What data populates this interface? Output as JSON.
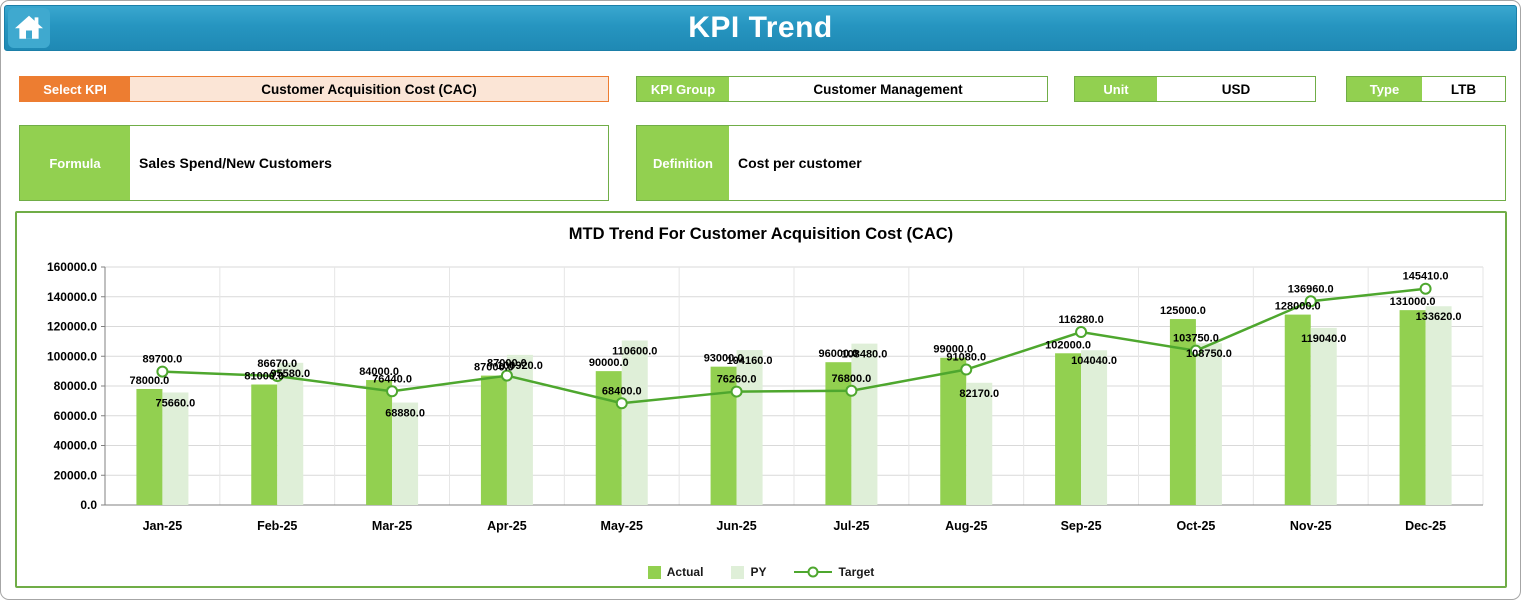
{
  "header": {
    "title": "KPI Trend"
  },
  "controls": {
    "select_kpi": {
      "label": "Select KPI",
      "value": "Customer Acquisition Cost (CAC)"
    },
    "kpi_group": {
      "label": "KPI Group",
      "value": "Customer Management"
    },
    "unit": {
      "label": "Unit",
      "value": "USD"
    },
    "type": {
      "label": "Type",
      "value": "LTB"
    },
    "formula": {
      "label": "Formula",
      "value": "Sales Spend/New Customers"
    },
    "definition": {
      "label": "Definition",
      "value": "Cost per customer"
    }
  },
  "chart_data": {
    "type": "bar",
    "title": "MTD Trend For Customer Acquisition Cost (CAC)",
    "categories": [
      "Jan-25",
      "Feb-25",
      "Mar-25",
      "Apr-25",
      "May-25",
      "Jun-25",
      "Jul-25",
      "Aug-25",
      "Sep-25",
      "Oct-25",
      "Nov-25",
      "Dec-25"
    ],
    "series": [
      {
        "name": "Actual",
        "type": "bar",
        "color": "#92D050",
        "values": [
          78000.0,
          81000.0,
          84000.0,
          87000.0,
          90000.0,
          93000.0,
          96000.0,
          99000.0,
          102000.0,
          125000.0,
          128000.0,
          131000.0
        ]
      },
      {
        "name": "PY",
        "type": "bar",
        "color": "#DFEFD8",
        "values": [
          75660.0,
          95580.0,
          68880.0,
          100920.0,
          110600.0,
          104160.0,
          108480.0,
          82170.0,
          104040.0,
          108750.0,
          119040.0,
          133620.0
        ]
      },
      {
        "name": "Target",
        "type": "line",
        "color": "#4EA72E",
        "values": [
          89700.0,
          86670.0,
          76440.0,
          87000.0,
          68400.0,
          76260.0,
          76800.0,
          91080.0,
          116280.0,
          103750.0,
          136960.0,
          145410.0
        ]
      }
    ],
    "ylim": [
      0,
      160000
    ],
    "ytick_step": 20000,
    "value_format_decimals": 1,
    "grid": true,
    "legend_position": "bottom"
  },
  "colors": {
    "header_teal": "#2695C0",
    "accent_orange": "#ED7D31",
    "orange_fill": "#FBE5D6",
    "accent_green": "#92D050",
    "py_green": "#DFEFD8",
    "border_green": "#70AD47",
    "line_green": "#4EA72E",
    "gridline": "#D9D9D9"
  }
}
